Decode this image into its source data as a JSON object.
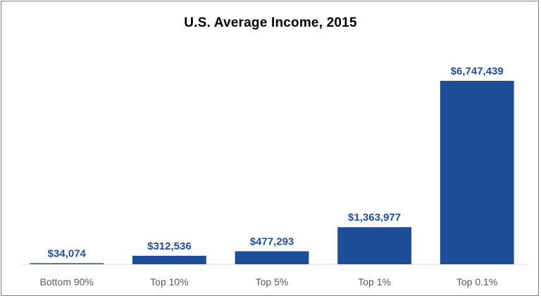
{
  "chart_data": {
    "type": "bar",
    "title": "U.S. Average Income, 2015",
    "xlabel": "",
    "ylabel": "",
    "categories": [
      "Bottom 90%",
      "Top 10%",
      "Top 5%",
      "Top 1%",
      "Top 0.1%"
    ],
    "values": [
      34074,
      312536,
      477293,
      1363977,
      6747439
    ],
    "data_labels": [
      "$34,074",
      "$312,536",
      "$477,293",
      "$1,363,977",
      "$6,747,439"
    ],
    "ylim": [
      0,
      6747439
    ],
    "grid": false,
    "legend": "none",
    "colors": {
      "bar": "#1f4e98",
      "data_label": "#1f4e98",
      "axis_line": "#d9d9d9",
      "tick_label": "#595959",
      "border": "#7f7f7f"
    }
  }
}
